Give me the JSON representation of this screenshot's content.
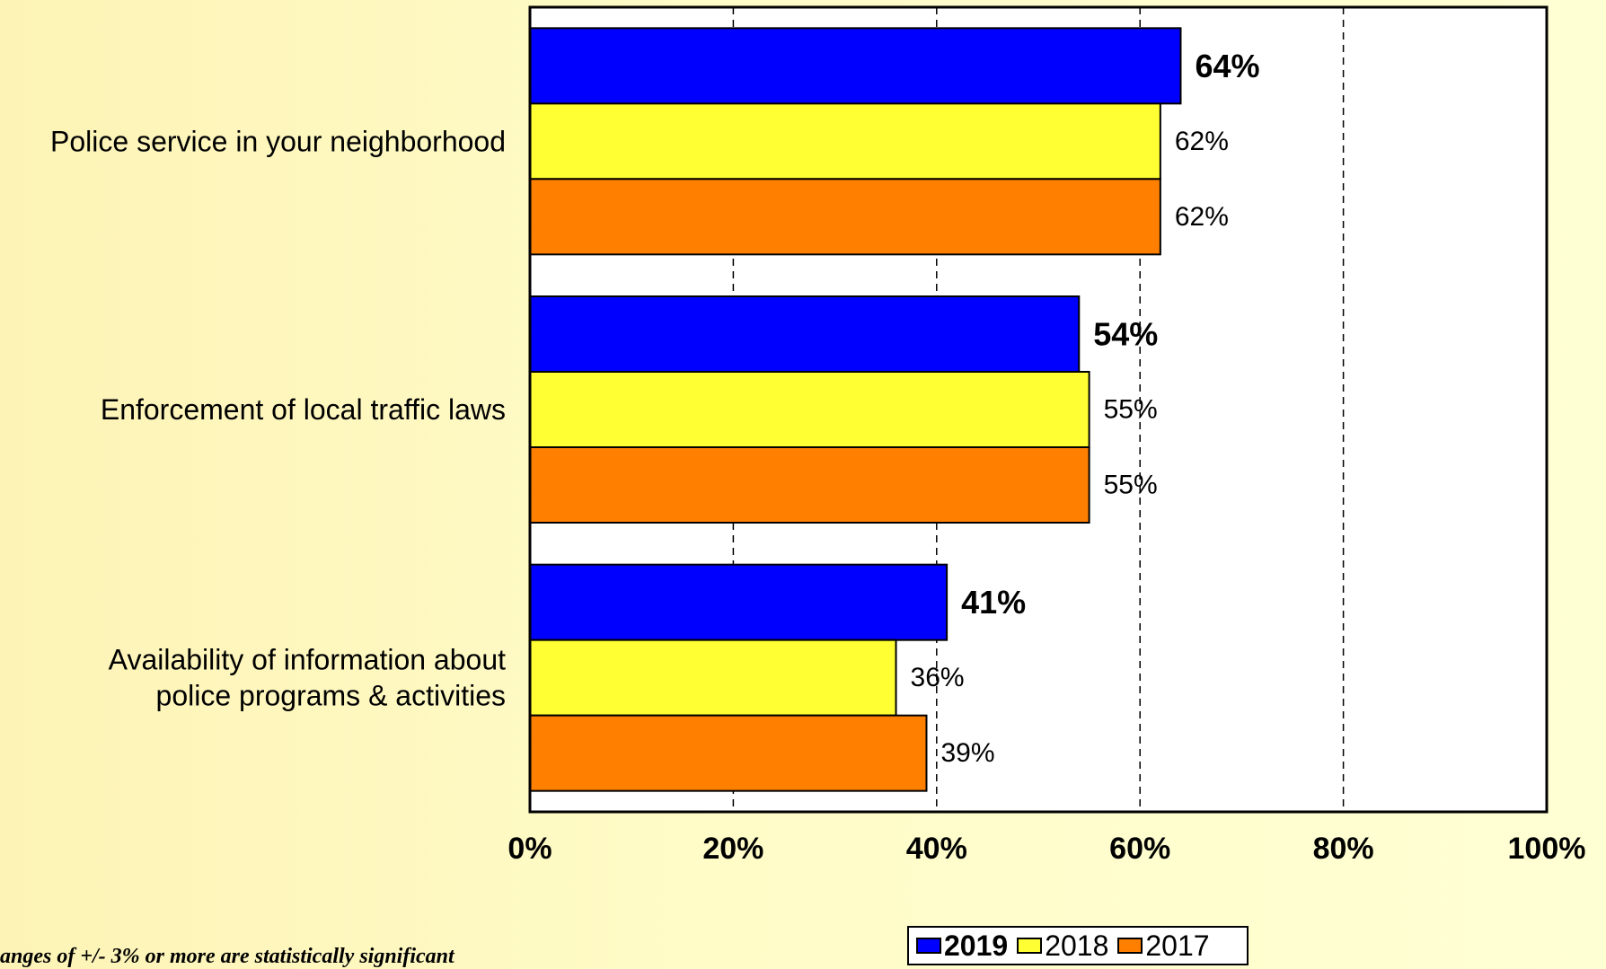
{
  "chart_data": {
    "type": "bar",
    "orientation": "horizontal",
    "categories": [
      [
        "Police service in your neighborhood"
      ],
      [
        "Enforcement of local traffic laws"
      ],
      [
        "Availability of information about",
        "police programs & activities"
      ]
    ],
    "series": [
      {
        "name": "2019",
        "color": "#0000FF",
        "values": [
          64,
          54,
          41
        ],
        "labels": [
          "64%",
          "54%",
          "41%"
        ],
        "bold": true
      },
      {
        "name": "2018",
        "color": "#FFFF33",
        "values": [
          62,
          55,
          36
        ],
        "labels": [
          "62%",
          "55%",
          "36%"
        ],
        "bold": false
      },
      {
        "name": "2017",
        "color": "#FF8000",
        "values": [
          62,
          55,
          39
        ],
        "labels": [
          "62%",
          "55%",
          "39%"
        ],
        "bold": false
      }
    ],
    "xlim": [
      0,
      100
    ],
    "xticks": [
      0,
      20,
      40,
      60,
      80,
      100
    ],
    "xtick_labels": [
      "0%",
      "20%",
      "40%",
      "60%",
      "80%",
      "100%"
    ],
    "grid": "vertical dashed",
    "legend_position": "bottom-right"
  },
  "footnote": "anges of +/- 3% or more are statistically significant"
}
